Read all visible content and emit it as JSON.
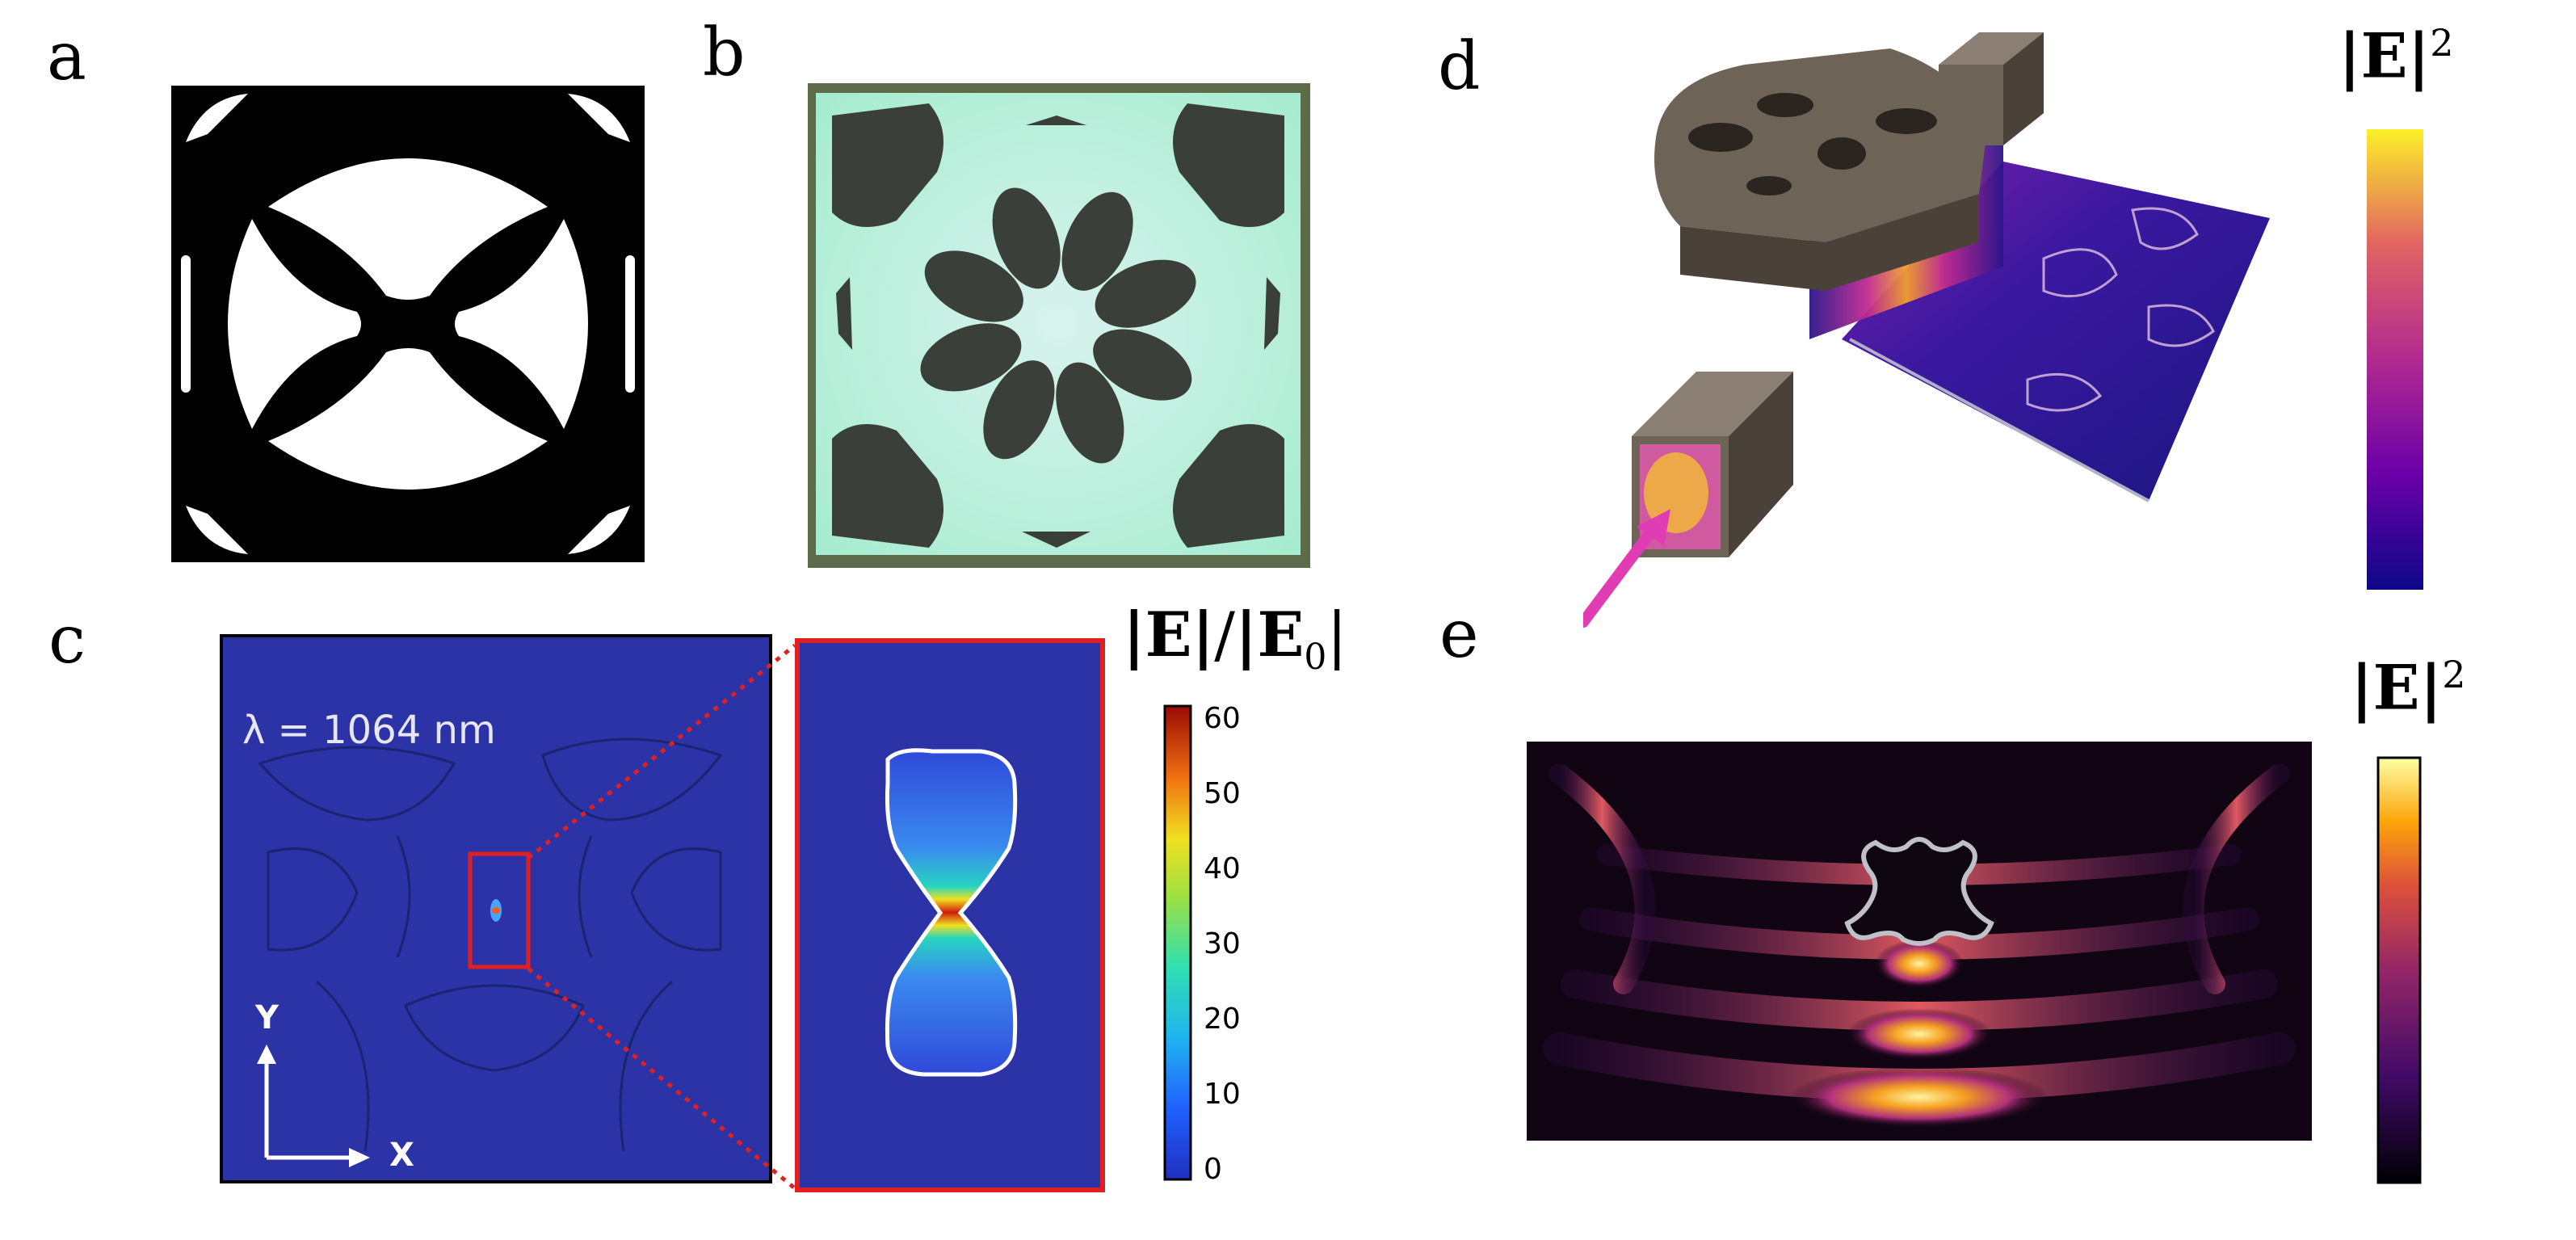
{
  "panels": {
    "a": {
      "label": "a"
    },
    "b": {
      "label": "b"
    },
    "c": {
      "label": "c",
      "wavelength": "λ = 1064 nm",
      "axis_y": "Y",
      "axis_x": "X",
      "colorbar": {
        "title_parts": [
          "|E|",
          "/",
          "|E",
          "0",
          "|"
        ],
        "ticks": [
          "60",
          "50",
          "40",
          "30",
          "20",
          "10",
          "0"
        ]
      }
    },
    "d": {
      "label": "d",
      "colorbar": {
        "title_base": "|E|",
        "title_exp": "2"
      }
    },
    "e": {
      "label": "e",
      "colorbar": {
        "title_base": "|E|",
        "title_exp": "2"
      }
    }
  },
  "colors": {
    "field_background": "#2b33a6",
    "zoom_border": "#e02020",
    "arrow": "#e03cb4",
    "device": "#6e6357"
  }
}
